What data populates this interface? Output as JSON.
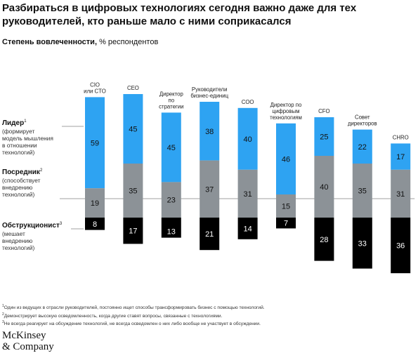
{
  "title": "Разбираться в цифровых технологиях сегодня важно даже для тех руководителей, кто раньше мало с ними соприкасался",
  "subtitle": {
    "bold": "Степень вовлеченности,",
    "rest": "% респондентов"
  },
  "chart_data": {
    "type": "bar",
    "stacked": true,
    "categories": [
      "CIO\nили CTO",
      "CEO",
      "Директор\nпо\nстратегии",
      "Руководители\nбизнес-единиц",
      "COO",
      "Директор по\nцифровым\nтехнологиям",
      "CFO",
      "Совет\nдиректоров",
      "CHRO"
    ],
    "series": [
      {
        "name": "Лидер",
        "color": "#2ea3f2",
        "values": [
          59,
          45,
          45,
          38,
          40,
          46,
          25,
          22,
          17
        ]
      },
      {
        "name": "Посредник",
        "color": "#8c9297",
        "values": [
          19,
          35,
          23,
          37,
          31,
          15,
          40,
          35,
          31
        ]
      },
      {
        "name": "Обструкционист",
        "color": "#000000",
        "values": [
          8,
          17,
          13,
          21,
          14,
          7,
          28,
          33,
          36
        ]
      }
    ],
    "legend": [
      {
        "name": "Лидер",
        "sup": "1",
        "desc": [
          "(формирует",
          "модель мышления",
          "в отношении",
          "технологий)"
        ]
      },
      {
        "name": "Посредник",
        "sup": "2",
        "desc": [
          "(способствует",
          "внедрению",
          "технологий)"
        ]
      },
      {
        "name": "Обструкционист",
        "sup": "3",
        "desc": [
          "(мешает",
          "внедрению",
          "технологий)"
        ]
      }
    ],
    "baseline": "divider between Лидер/Посредник above and Обструкционист below",
    "legend_position": "left"
  },
  "footnotes": [
    {
      "sup": "1",
      "text": "Один из ведущих в отрасли руководителей, постоянно ищет способы трансформировать бизнес с помощью технологий."
    },
    {
      "sup": "2",
      "text": "Демонстрирует высокую осведомленность, когда другие ставят вопросы, связанные с технологиями."
    },
    {
      "sup": "3",
      "text": "Не всегда реагирует на обсуждение технологий, не всегда осведомлен о них либо вообще не участвует в обсуждении."
    }
  ],
  "logo": {
    "line1": "McKinsey",
    "line2": "& Company"
  }
}
